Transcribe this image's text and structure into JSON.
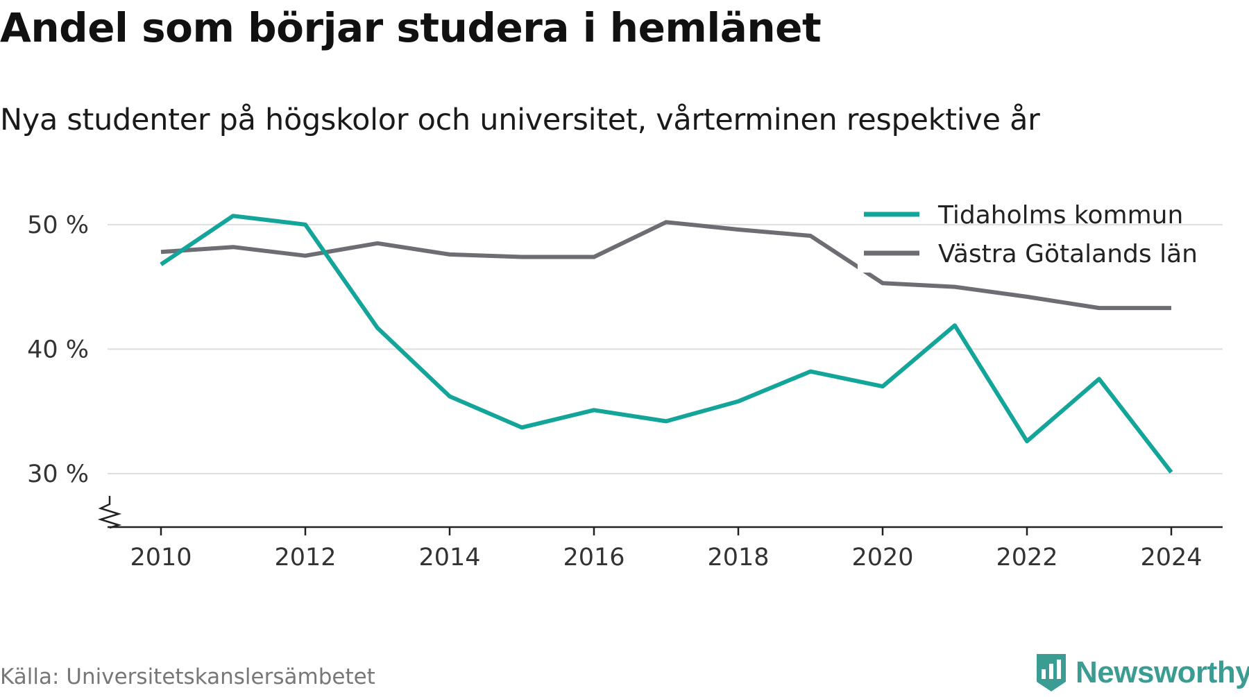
{
  "title": "Andel som börjar studera i hemlänet",
  "subtitle": "Nya studenter på högskolor och universitet, vårterminen respektive år",
  "source": "Källa: Universitetskanslersämbetet",
  "brand": {
    "name": "Newsworthy",
    "icon": "newsworthy-logo-icon",
    "color": "#3a9c92"
  },
  "chart_data": {
    "type": "line",
    "x": [
      2010,
      2011,
      2012,
      2013,
      2014,
      2015,
      2016,
      2017,
      2018,
      2019,
      2020,
      2021,
      2022,
      2023,
      2024
    ],
    "series": [
      {
        "name": "Tidaholms kommun",
        "color": "#14a59a",
        "values": [
          46.8,
          50.7,
          50.0,
          41.7,
          36.2,
          33.7,
          35.1,
          34.2,
          35.8,
          38.2,
          37.0,
          41.9,
          32.6,
          37.6,
          30.1
        ]
      },
      {
        "name": "Västra Götalands län",
        "color": "#6e6d74",
        "values": [
          47.8,
          48.2,
          47.5,
          48.5,
          47.6,
          47.4,
          47.4,
          50.2,
          49.6,
          49.1,
          45.3,
          45.0,
          44.2,
          43.3,
          43.3
        ]
      }
    ],
    "xticks": [
      2010,
      2012,
      2014,
      2016,
      2018,
      2020,
      2022,
      2024
    ],
    "xtick_labels": [
      "2010",
      "2012",
      "2014",
      "2016",
      "2018",
      "2020",
      "2022",
      "2024"
    ],
    "yticks": [
      30,
      40,
      50
    ],
    "ytick_labels": [
      "30 %",
      "40 %",
      "50 %"
    ],
    "ylim": [
      25.7,
      53
    ],
    "y_axis_break": true,
    "grid": true,
    "legend_position": "top-right"
  }
}
